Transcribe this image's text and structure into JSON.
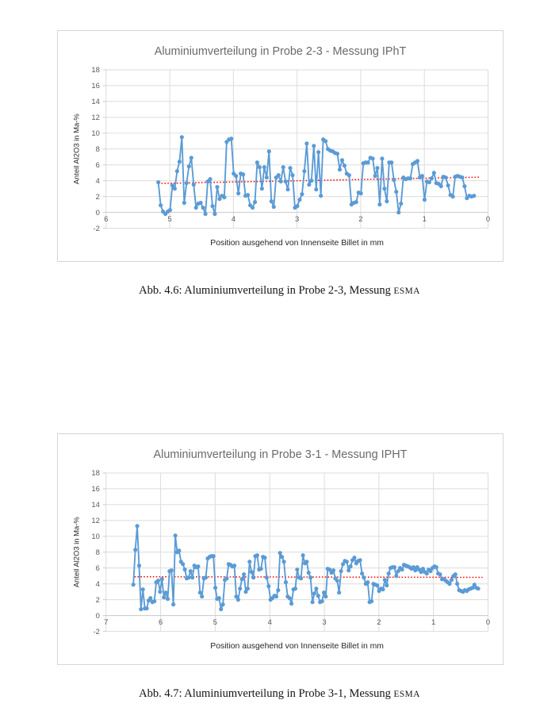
{
  "page": {
    "background": "#ffffff"
  },
  "figures": [
    {
      "caption_prefix": "Abb. 4.6: Aluminiumverteilung in Probe 2-3, Messung ",
      "caption_smallcaps": "ESMA"
    },
    {
      "caption_prefix": "Abb. 4.7: Aluminiumverteilung in Probe 3-1, Messung ",
      "caption_smallcaps": "ESMA"
    }
  ],
  "chart_data": [
    {
      "type": "line",
      "title": "Aluminiumverteilung in Probe 2-3 - Messung IPhT",
      "xlabel": "Position ausgehend von Innenseite Billet in mm",
      "ylabel": "Anteil Al2O3 in Ma-%",
      "xlim": [
        6,
        0
      ],
      "ylim": [
        -2,
        18
      ],
      "x_ticks": [
        6,
        5,
        4,
        3,
        2,
        1,
        0
      ],
      "y_ticks": [
        18,
        16,
        14,
        12,
        10,
        8,
        6,
        4,
        2,
        0,
        -2
      ],
      "grid": true,
      "legend": "none",
      "x_axis_reversed": true,
      "colors": {
        "line": "#5b9bd5",
        "trend": "#ff0000",
        "grid": "#dcdcdc",
        "zero_axis": "#c9c9c9",
        "tick_text": "#595959",
        "title_text": "#6a6a6a",
        "axis_title_text": "#262626"
      },
      "series": [
        {
          "color": "#5b9bd5",
          "x_start": 5.18,
          "x_end": 0.22,
          "values": [
            3.8,
            0.9,
            0.1,
            -0.2,
            0.1,
            0.3,
            3.4,
            3.0,
            5.2,
            6.4,
            9.5,
            1.2,
            3.7,
            5.8,
            6.9,
            3.5,
            0.6,
            1.1,
            1.2,
            0.6,
            -0.2,
            3.9,
            4.2,
            0.8,
            -0.2,
            3.2,
            1.7,
            2.1,
            1.9,
            8.9,
            9.2,
            9.3,
            4.9,
            4.6,
            2.4,
            4.9,
            4.8,
            2.1,
            2.2,
            0.9,
            0.6,
            1.3,
            6.3,
            5.7,
            3.0,
            5.7,
            4.4,
            7.7,
            1.4,
            0.7,
            4.4,
            4.7,
            3.9,
            5.7,
            3.9,
            2.9,
            5.6,
            4.7,
            0.6,
            0.8,
            1.6,
            2.3,
            5.2,
            8.7,
            3.5,
            4.0,
            8.4,
            2.9,
            7.6,
            2.1,
            9.2,
            9.0,
            8.0,
            7.8,
            7.7,
            7.5,
            7.4,
            5.4,
            6.6,
            5.9,
            4.9,
            4.7,
            1.0,
            1.2,
            1.3,
            2.5,
            2.4,
            6.2,
            6.3,
            6.3,
            6.9,
            6.8,
            4.6,
            5.6,
            1.0,
            6.8,
            3.0,
            1.4,
            6.3,
            6.3,
            4.1,
            2.6,
            0.0,
            1.1,
            4.4,
            4.2,
            4.3,
            4.3,
            6.1,
            6.3,
            6.5,
            4.4,
            4.6,
            1.6,
            3.9,
            3.8,
            4.3,
            5.0,
            3.7,
            3.6,
            3.3,
            4.5,
            4.4,
            3.4,
            2.2,
            2.0,
            4.5,
            4.6,
            4.5,
            4.4,
            3.3,
            1.8,
            2.1,
            2.0,
            2.1
          ]
        }
      ],
      "trendline": {
        "color": "#ff0000",
        "style": "dotted",
        "x": [
          5.18,
          0.12
        ],
        "y": [
          3.65,
          4.45
        ]
      }
    },
    {
      "type": "line",
      "title": "Aluminiumverteilung in Probe 3-1 - Messung IPHT",
      "xlabel": "Position ausgehend von Innenseite Billet in mm",
      "ylabel": "Anteil Al2O3 in Ma-%",
      "xlim": [
        7,
        0
      ],
      "ylim": [
        -2,
        18
      ],
      "x_ticks": [
        7,
        6,
        5,
        4,
        3,
        2,
        1,
        0
      ],
      "y_ticks": [
        18,
        16,
        14,
        12,
        10,
        8,
        6,
        4,
        2,
        0,
        -2
      ],
      "grid": true,
      "legend": "none",
      "x_axis_reversed": true,
      "colors": {
        "line": "#5b9bd5",
        "trend": "#ff0000",
        "grid": "#dcdcdc",
        "zero_axis": "#c9c9c9",
        "tick_text": "#595959",
        "title_text": "#6a6a6a",
        "axis_title_text": "#262626"
      },
      "series": [
        {
          "color": "#5b9bd5",
          "x_start": 6.5,
          "x_end": 0.18,
          "values": [
            3.9,
            8.3,
            11.3,
            6.3,
            0.8,
            3.3,
            0.9,
            0.9,
            1.9,
            2.2,
            1.7,
            1.8,
            4.2,
            4.4,
            3.0,
            4.6,
            2.3,
            2.9,
            2.1,
            5.6,
            5.7,
            1.4,
            10.1,
            8.0,
            8.2,
            6.8,
            6.5,
            5.8,
            4.7,
            4.8,
            5.6,
            4.8,
            6.3,
            6.1,
            6.2,
            2.9,
            2.4,
            4.7,
            4.8,
            7.2,
            7.4,
            7.5,
            7.5,
            3.5,
            2.1,
            2.2,
            0.8,
            1.4,
            4.5,
            4.7,
            6.5,
            6.4,
            6.2,
            6.3,
            2.4,
            2.0,
            3.4,
            4.6,
            5.2,
            3.0,
            3.4,
            6.8,
            5.5,
            4.8,
            7.5,
            7.6,
            5.8,
            5.9,
            7.4,
            7.3,
            4.8,
            3.7,
            2.0,
            2.2,
            2.5,
            2.4,
            3.2,
            7.9,
            7.4,
            6.8,
            4.2,
            2.4,
            2.2,
            1.5,
            3.3,
            3.4,
            5.8,
            4.8,
            4.7,
            7.6,
            6.6,
            6.8,
            5.4,
            4.8,
            1.7,
            2.8,
            3.4,
            2.5,
            1.7,
            1.8,
            2.9,
            2.4,
            5.9,
            5.8,
            5.4,
            5.7,
            4.7,
            4.4,
            2.9,
            5.6,
            6.5,
            6.9,
            6.8,
            5.7,
            6.2,
            7.0,
            7.3,
            6.6,
            6.9,
            7.0,
            5.3,
            4.8,
            4.0,
            4.2,
            1.7,
            1.8,
            4.0,
            3.9,
            3.8,
            3.1,
            3.4,
            3.3,
            4.5,
            3.8,
            5.3,
            6.0,
            6.1,
            6.1,
            5.0,
            5.6,
            6.0,
            5.8,
            6.4,
            6.3,
            6.2,
            6.1,
            5.9,
            6.1,
            5.7,
            6.1,
            5.8,
            5.5,
            5.9,
            5.5,
            5.3,
            5.8,
            5.6,
            6.0,
            6.2,
            6.1,
            5.3,
            5.2,
            4.6,
            4.6,
            4.4,
            4.2,
            4.0,
            4.5,
            5.0,
            5.2,
            4.0,
            3.2,
            3.1,
            3.0,
            3.2,
            3.1,
            3.3,
            3.4,
            3.5,
            3.9,
            3.5,
            3.4
          ]
        }
      ],
      "trendline": {
        "color": "#ff0000",
        "style": "dotted",
        "x": [
          6.48,
          0.1
        ],
        "y": [
          4.9,
          4.82
        ]
      }
    }
  ]
}
